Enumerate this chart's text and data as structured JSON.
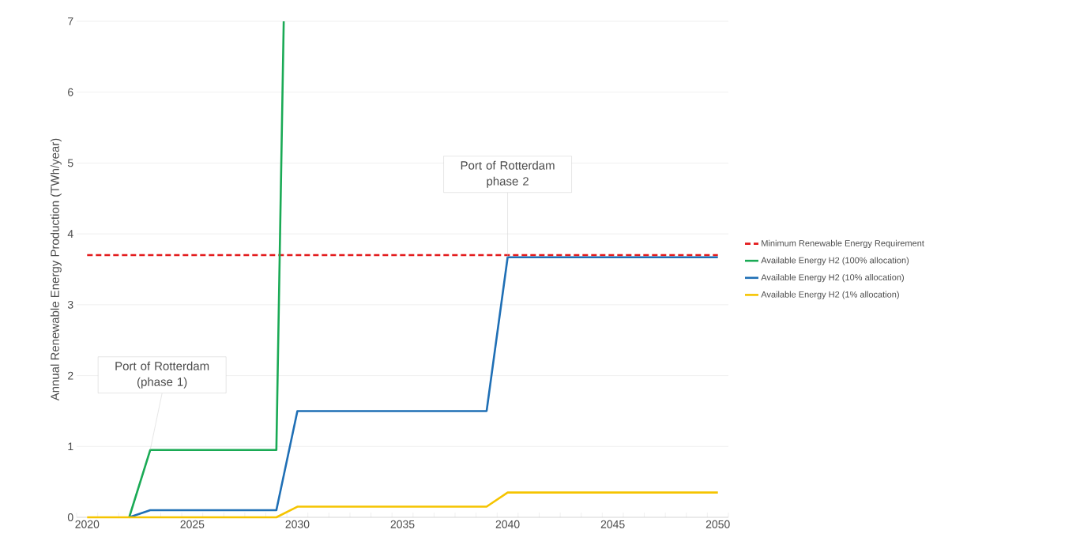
{
  "chart_data": {
    "type": "line",
    "ylabel": "Annual Renewable Energy Production (TWh/year)",
    "xlim": [
      2019.5,
      2050.5
    ],
    "xticks": [
      2020,
      2025,
      2030,
      2035,
      2040,
      2045,
      2050
    ],
    "ylim": [
      0,
      7
    ],
    "yticks": [
      0,
      1,
      2,
      3,
      4,
      5,
      6,
      7
    ],
    "grid": "y",
    "legend": "right",
    "marker": "none",
    "series": [
      {
        "name": "Minimum Renewable Energy Requirement",
        "color": "#e31a1c",
        "line_style": "dashed",
        "x": [
          2020,
          2050
        ],
        "values": [
          3.7,
          3.7
        ]
      },
      {
        "name": "Available Energy H2 (100% allocation)",
        "color": "#1aaa55",
        "line_style": "solid",
        "x": [
          2022,
          2023,
          2029,
          2029.35
        ],
        "values": [
          0,
          0.95,
          0.95,
          7
        ]
      },
      {
        "name": "Available Energy H2 (10% allocation)",
        "color": "#1f6fb5",
        "line_style": "solid",
        "x": [
          2022,
          2023,
          2029,
          2030,
          2039,
          2040,
          2050
        ],
        "values": [
          0,
          0.1,
          0.1,
          1.5,
          1.5,
          3.67,
          3.67
        ]
      },
      {
        "name": "Available Energy H2 (1% allocation)",
        "color": "#f5c400",
        "line_style": "solid",
        "x": [
          2020,
          2029,
          2030,
          2039,
          2040,
          2050
        ],
        "values": [
          0,
          0,
          0.15,
          0.15,
          0.35,
          0.35
        ]
      }
    ],
    "annotations": [
      {
        "text": "Port of Rotterdam (phase 1)",
        "x": 2023,
        "y": 0.95
      },
      {
        "text": "Port of Rotterdam phase 2",
        "x": 2040,
        "y": 3.67
      }
    ]
  }
}
